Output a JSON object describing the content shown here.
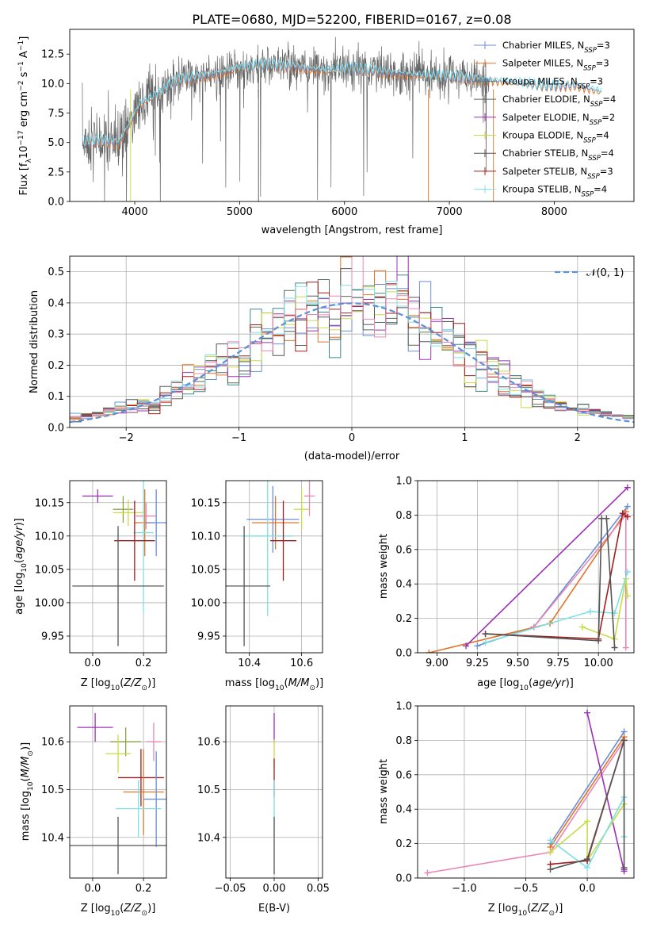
{
  "figure_title": "PLATE=0680, MJD=52200, FIBERID=0167, z=0.08",
  "colors": {
    "Chabrier MILES": "#6b8fd6",
    "Salpeter MILES": "#e0752a",
    "Kroupa MILES": "#3d8c8c",
    "Chabrier ELODIE": "#5a6b5a",
    "Salpeter ELODIE": "#9b30b8",
    "Kroupa ELODIE": "#c8dc46",
    "Chabrier STELIB": "#555555",
    "Salpeter STELIB": "#a01e1e",
    "Kroupa STELIB": "#7fdfe6",
    "pink": "#e887b6",
    "olive": "#8aa14a",
    "normal": "#5b8fd6"
  },
  "chart_data": [
    {
      "id": "spectrum",
      "type": "line",
      "title": "PLATE=0680, MJD=52200, FIBERID=0167, z=0.08",
      "xlabel": "wavelength [Angstrom, rest frame]",
      "ylabel": "Flux [f_λ 10^-17 erg cm^-2 s^-1 A^-1]",
      "xlim": [
        3380,
        8760
      ],
      "ylim": [
        0,
        14.6
      ],
      "xticks": [
        "4000",
        "5000",
        "6000",
        "7000",
        "8000"
      ],
      "yticks": [
        "0.0",
        "2.5",
        "5.0",
        "7.5",
        "10.0",
        "12.5"
      ],
      "legend_position": "top-right",
      "legend": [
        {
          "label": "Chabrier MILES, N",
          "sub": "SSP",
          "tail": "=3"
        },
        {
          "label": "Salpeter MILES, N",
          "sub": "SSP",
          "tail": "=3"
        },
        {
          "label": "Kroupa MILES, N",
          "sub": "SSP",
          "tail": "=3"
        },
        {
          "label": "Chabrier ELODIE, N",
          "sub": "SSP",
          "tail": "=4"
        },
        {
          "label": "Salpeter ELODIE, N",
          "sub": "SSP",
          "tail": "=2"
        },
        {
          "label": "Kroupa ELODIE, N",
          "sub": "SSP",
          "tail": "=4"
        },
        {
          "label": "Chabrier STELIB, N",
          "sub": "SSP",
          "tail": "=4"
        },
        {
          "label": "Salpeter STELIB, N",
          "sub": "SSP",
          "tail": "=3"
        },
        {
          "label": "Kroupa STELIB, N",
          "sub": "SSP",
          "tail": "=4"
        }
      ],
      "continuum": {
        "x": [
          3500,
          3700,
          3850,
          3950,
          4050,
          4200,
          4400,
          4600,
          4800,
          5000,
          5200,
          5500,
          5800,
          6100,
          6400,
          6700,
          7000,
          7300,
          7600,
          7900,
          8200,
          8500
        ],
        "y": [
          5.0,
          5.2,
          5.0,
          6.6,
          8.3,
          9.0,
          10.3,
          10.6,
          10.9,
          11.3,
          11.6,
          11.5,
          11.1,
          11.3,
          11.0,
          10.7,
          10.6,
          10.4,
          10.1,
          9.8,
          9.9,
          9.2
        ]
      },
      "observed_range": [
        3500,
        7380
      ],
      "model_range": [
        3500,
        8450
      ]
    },
    {
      "id": "residuals",
      "type": "line",
      "xlabel": "(data-model)/error",
      "ylabel": "Normed distribution",
      "xlim": [
        -2.5,
        2.5
      ],
      "ylim": [
        0,
        0.55
      ],
      "xticks": [
        "-2",
        "-1",
        "0",
        "1",
        "2"
      ],
      "yticks": [
        "0.0",
        "0.1",
        "0.2",
        "0.3",
        "0.4",
        "0.5"
      ],
      "legend_position": "top-right",
      "legend": [
        "𝒩(0, 1)"
      ],
      "bin_width": 0.1,
      "gaussian": {
        "mean": 0,
        "sigma": 1
      }
    },
    {
      "id": "age_vs_Z",
      "type": "scatter",
      "xlabel": "Z [log10(Z/Z☉)]",
      "ylabel": "age  [log10(age/yr)]",
      "xlim": [
        -0.09,
        0.29
      ],
      "ylim": [
        9.925,
        10.183
      ],
      "xticks": [
        "0.0",
        "0.2"
      ],
      "yticks": [
        "9.95",
        "10.00",
        "10.05",
        "10.10",
        "10.15"
      ],
      "points": [
        {
          "color": "Salpeter ELODIE",
          "x": 0.02,
          "y": 10.16,
          "xerr": 0.06,
          "yerr": 0.01
        },
        {
          "color": "olive",
          "x": 0.12,
          "y": 10.14,
          "xerr": 0.04,
          "yerr": 0.02
        },
        {
          "color": "Kroupa ELODIE",
          "x": 0.14,
          "y": 10.135,
          "xerr": 0.06,
          "yerr": 0.02
        },
        {
          "color": "pink",
          "x": 0.21,
          "y": 10.13,
          "xerr": 0.04,
          "yerr": 0.02
        },
        {
          "color": "Salpeter MILES",
          "x": 0.205,
          "y": 10.12,
          "xerr": 0.04,
          "yerr": 0.05
        },
        {
          "color": "Chabrier MILES",
          "x": 0.25,
          "y": 10.12,
          "xerr": 0.04,
          "yerr": 0.05
        },
        {
          "color": "Kroupa STELIB",
          "x": 0.2,
          "y": 10.105,
          "xerr": 0.04,
          "yerr": 0.12
        },
        {
          "color": "Salpeter STELIB",
          "x": 0.165,
          "y": 10.093,
          "xerr": 0.08,
          "yerr": 0.06
        },
        {
          "color": "Chabrier STELIB",
          "x": 0.1,
          "y": 10.025,
          "xerr": 0.18,
          "yerr": 0.09
        }
      ]
    },
    {
      "id": "age_vs_mass",
      "type": "scatter",
      "xlabel": "mass [log10(M/M☉)]",
      "ylabel": "",
      "xlim": [
        10.31,
        10.68
      ],
      "ylim": [
        9.925,
        10.183
      ],
      "xticks": [
        "10.4",
        "10.6"
      ],
      "yticks": [
        "9.95",
        "10.00",
        "10.05",
        "10.10",
        "10.15"
      ],
      "points": [
        {
          "color": "pink",
          "x": 10.63,
          "y": 10.16,
          "xerr": 0.02,
          "yerr": 0.03
        },
        {
          "color": "Kroupa ELODIE",
          "x": 10.6,
          "y": 10.14,
          "xerr": 0.03,
          "yerr": 0.03
        },
        {
          "color": "Chabrier MILES",
          "x": 10.49,
          "y": 10.125,
          "xerr": 0.1,
          "yerr": 0.05
        },
        {
          "color": "Salpeter MILES",
          "x": 10.5,
          "y": 10.12,
          "xerr": 0.09,
          "yerr": 0.04
        },
        {
          "color": "Kroupa STELIB",
          "x": 10.47,
          "y": 10.1,
          "xerr": 0.1,
          "yerr": 0.12
        },
        {
          "color": "Salpeter STELIB",
          "x": 10.53,
          "y": 10.093,
          "xerr": 0.05,
          "yerr": 0.06
        },
        {
          "color": "Chabrier STELIB",
          "x": 10.38,
          "y": 10.025,
          "xerr": 0.1,
          "yerr": 0.09
        }
      ]
    },
    {
      "id": "weight_vs_age",
      "type": "line",
      "xlabel": "age  [log10(age/yr)]",
      "ylabel": "mass weight",
      "xlim": [
        8.88,
        10.22
      ],
      "ylim": [
        0,
        1
      ],
      "xticks": [
        "9.00",
        "9.25",
        "9.50",
        "9.75",
        "10.00"
      ],
      "yticks": [
        "0.0",
        "0.2",
        "0.4",
        "0.6",
        "0.8",
        "1.0"
      ],
      "series": [
        {
          "color": "Chabrier MILES",
          "x": [
            9.25,
            9.6,
            10.18
          ],
          "y": [
            0.04,
            0.15,
            0.85
          ]
        },
        {
          "color": "Salpeter MILES",
          "x": [
            8.95,
            9.7,
            10.17
          ],
          "y": [
            0.0,
            0.17,
            0.82
          ]
        },
        {
          "color": "Salpeter ELODIE",
          "x": [
            9.18,
            10.18
          ],
          "y": [
            0.04,
            0.96
          ]
        },
        {
          "color": "pink",
          "x": [
            9.6,
            10.17,
            10.17
          ],
          "y": [
            0.15,
            0.8,
            0.03
          ]
        },
        {
          "color": "Kroupa ELODIE",
          "x": [
            9.9,
            10.1,
            10.17,
            10.18
          ],
          "y": [
            0.15,
            0.08,
            0.43,
            0.33
          ]
        },
        {
          "color": "Kroupa STELIB",
          "x": [
            9.3,
            9.95,
            10.1,
            10.18
          ],
          "y": [
            0.06,
            0.24,
            0.23,
            0.47
          ]
        },
        {
          "color": "Salpeter STELIB",
          "x": [
            9.3,
            10.0,
            10.15,
            10.18
          ],
          "y": [
            0.11,
            0.08,
            0.81,
            0.79
          ]
        },
        {
          "color": "Chabrier STELIB",
          "x": [
            9.3,
            10.0,
            10.02,
            10.05,
            10.1
          ],
          "y": [
            0.11,
            0.07,
            0.78,
            0.78,
            0.03
          ]
        }
      ]
    },
    {
      "id": "mass_vs_Z",
      "type": "scatter",
      "xlabel": "Z [log10(Z/Z☉)]",
      "ylabel": "mass [log10(M/M☉)]",
      "xlim": [
        -0.09,
        0.29
      ],
      "ylim": [
        10.315,
        10.675
      ],
      "xticks": [
        "0.0",
        "0.2"
      ],
      "yticks": [
        "10.4",
        "10.5",
        "10.6"
      ],
      "points": [
        {
          "color": "Salpeter ELODIE",
          "x": 0.01,
          "y": 10.63,
          "xerr": 0.07,
          "yerr": 0.03
        },
        {
          "color": "olive",
          "x": 0.13,
          "y": 10.6,
          "xerr": 0.06,
          "yerr": 0.03
        },
        {
          "color": "Kroupa ELODIE",
          "x": 0.1,
          "y": 10.575,
          "xerr": 0.05,
          "yerr": 0.04
        },
        {
          "color": "pink",
          "x": 0.24,
          "y": 10.6,
          "xerr": 0.03,
          "yerr": 0.04
        },
        {
          "color": "Salpeter STELIB",
          "x": 0.19,
          "y": 10.525,
          "xerr": 0.09,
          "yerr": 0.06
        },
        {
          "color": "Salpeter MILES",
          "x": 0.2,
          "y": 10.495,
          "xerr": 0.08,
          "yerr": 0.09
        },
        {
          "color": "Chabrier MILES",
          "x": 0.25,
          "y": 10.48,
          "xerr": 0.05,
          "yerr": 0.1
        },
        {
          "color": "Kroupa STELIB",
          "x": 0.18,
          "y": 10.46,
          "xerr": 0.09,
          "yerr": 0.06
        },
        {
          "color": "Chabrier STELIB",
          "x": 0.1,
          "y": 10.383,
          "xerr": 0.19,
          "yerr": 0.06
        }
      ]
    },
    {
      "id": "mass_vs_ebv",
      "type": "scatter",
      "xlabel": "E(B-V)",
      "ylabel": "",
      "xlim": [
        -0.055,
        0.055
      ],
      "ylim": [
        10.315,
        10.675
      ],
      "xticks": [
        "-0.05",
        "0.00",
        "0.05"
      ],
      "yticks": [
        "10.4",
        "10.5",
        "10.6"
      ],
      "points": [
        {
          "color": "Salpeter ELODIE",
          "x": 0,
          "y": 10.63,
          "xerr": 0,
          "yerr": 0.03
        },
        {
          "color": "Kroupa ELODIE",
          "x": 0,
          "y": 10.575,
          "xerr": 0,
          "yerr": 0.03
        },
        {
          "color": "Salpeter STELIB",
          "x": 0,
          "y": 10.525,
          "xerr": 0,
          "yerr": 0.04
        },
        {
          "color": "Kroupa STELIB",
          "x": 0,
          "y": 10.46,
          "xerr": 0,
          "yerr": 0.06
        },
        {
          "color": "Chabrier STELIB",
          "x": 0,
          "y": 10.383,
          "xerr": 0,
          "yerr": 0.06
        }
      ]
    },
    {
      "id": "weight_vs_Z",
      "type": "line",
      "xlabel": "Z [log10(Z/Z☉)]",
      "ylabel": "mass weight",
      "xlim": [
        -1.38,
        0.38
      ],
      "ylim": [
        0,
        1
      ],
      "xticks": [
        "-1.0",
        "-0.5",
        "0.0"
      ],
      "yticks": [
        "0.0",
        "0.2",
        "0.4",
        "0.6",
        "0.8",
        "1.0"
      ],
      "series": [
        {
          "color": "pink",
          "x": [
            -1.3,
            -0.3,
            0.3
          ],
          "y": [
            0.03,
            0.15,
            0.8
          ]
        },
        {
          "color": "Chabrier MILES",
          "x": [
            -0.3,
            0.3
          ],
          "y": [
            0.2,
            0.85
          ]
        },
        {
          "color": "Salpeter MILES",
          "x": [
            -0.3,
            0.3
          ],
          "y": [
            0.18,
            0.82
          ]
        },
        {
          "color": "Salpeter ELODIE",
          "x": [
            0.0,
            0.3,
            0.3
          ],
          "y": [
            0.96,
            0.04,
            0.05
          ]
        },
        {
          "color": "Kroupa ELODIE",
          "x": [
            -0.3,
            0.0,
            0.0,
            0.3
          ],
          "y": [
            0.15,
            0.33,
            0.1,
            0.43
          ]
        },
        {
          "color": "Kroupa STELIB",
          "x": [
            -0.3,
            0.0,
            0.3,
            0.3
          ],
          "y": [
            0.22,
            0.06,
            0.47,
            0.24
          ]
        },
        {
          "color": "Salpeter STELIB",
          "x": [
            -0.3,
            0.0,
            0.3
          ],
          "y": [
            0.08,
            0.1,
            0.8
          ]
        },
        {
          "color": "Chabrier STELIB",
          "x": [
            -0.3,
            0.0,
            0.3,
            0.3
          ],
          "y": [
            0.05,
            0.11,
            0.8,
            0.06
          ]
        }
      ]
    }
  ]
}
